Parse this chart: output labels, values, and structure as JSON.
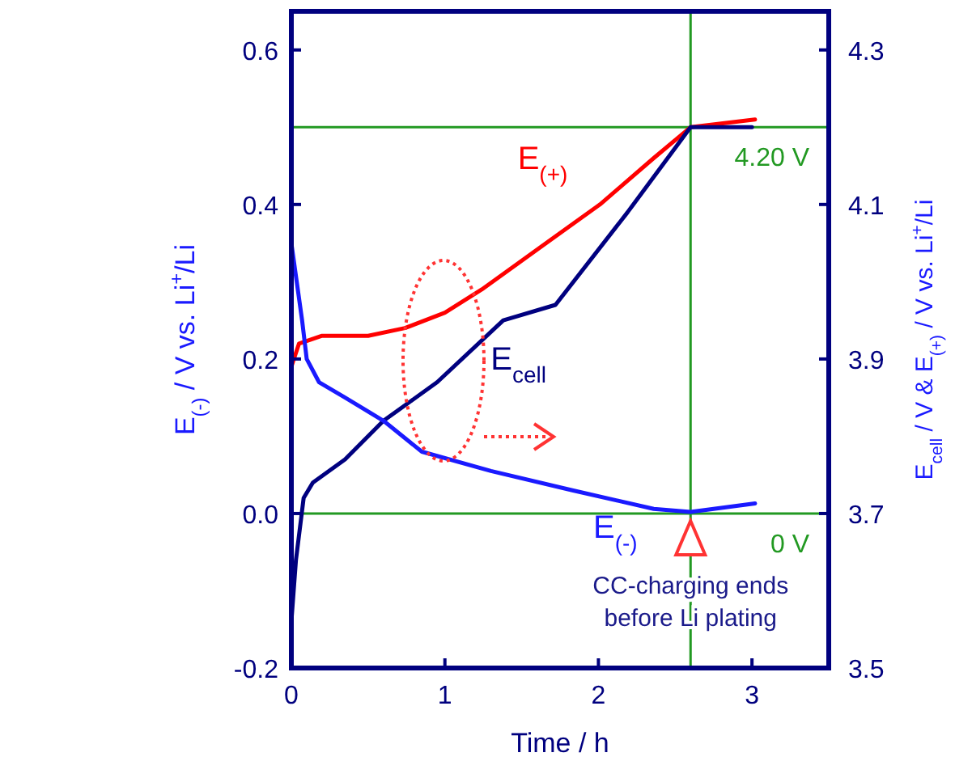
{
  "chart_data": {
    "type": "line",
    "xlabel": "Time / h",
    "ylabel": "E$_{(-)}$ / V vs. Li$^{+}$/Li",
    "y2label": "E$_{cell}$ / V & E$_{(+)}$ / V vs. Li$^{+}$/Li",
    "xlim": [
      0,
      3.5
    ],
    "xticks": [
      0,
      1,
      2,
      3
    ],
    "ylim": [
      -0.2,
      0.65
    ],
    "yticks": [
      -0.2,
      {
        "value": 0,
        "label": "0.0"
      },
      0.2,
      0.4,
      0.6
    ],
    "y2lim": [
      3.5,
      4.35
    ],
    "y2ticks": [
      3.5,
      3.7,
      3.9,
      4.1,
      4.3
    ],
    "grid": false,
    "marker": "none",
    "line_style": "solid",
    "series": [
      {
        "name": "E$_{(+)}$",
        "color": "#ff0000",
        "axis": "y2",
        "x": [
          0,
          0.05,
          0.2,
          0.5,
          0.74,
          1.0,
          1.24,
          1.66,
          2.01,
          2.36,
          2.6,
          3.02
        ],
        "values": [
          3.89,
          3.92,
          3.93,
          3.93,
          3.94,
          3.96,
          3.99,
          4.05,
          4.1,
          4.16,
          4.2,
          4.21
        ]
      },
      {
        "name": "E$_{cell}$",
        "color": "#00007f",
        "axis": "y2",
        "x": [
          0,
          0.03,
          0.08,
          0.14,
          0.35,
          0.6,
          0.95,
          1.38,
          1.72,
          2.19,
          2.6,
          3.0
        ],
        "values": [
          3.56,
          3.64,
          3.72,
          3.74,
          3.77,
          3.82,
          3.87,
          3.95,
          3.97,
          4.09,
          4.2,
          4.2
        ]
      },
      {
        "name": "E$_{(-)}$",
        "color": "#1a1aff",
        "x": [
          0,
          0.07,
          0.1,
          0.18,
          0.35,
          0.6,
          0.85,
          1.3,
          1.83,
          2.36,
          2.6,
          3.02
        ],
        "values": [
          0.35,
          0.25,
          0.2,
          0.17,
          0.15,
          0.12,
          0.08,
          0.055,
          0.03,
          0.006,
          0.002,
          0.013
        ]
      }
    ],
    "ref_lines": [
      {
        "axis": "x",
        "value": 2.6,
        "color": "#229922"
      },
      {
        "axis": "y2",
        "value": 4.2,
        "label": "4.20 V",
        "color": "#229922"
      },
      {
        "axis": "y",
        "value": 0,
        "label": "0 V",
        "color": "#229922"
      }
    ],
    "annotations": [
      "CC-charging ends before Li plating"
    ]
  }
}
